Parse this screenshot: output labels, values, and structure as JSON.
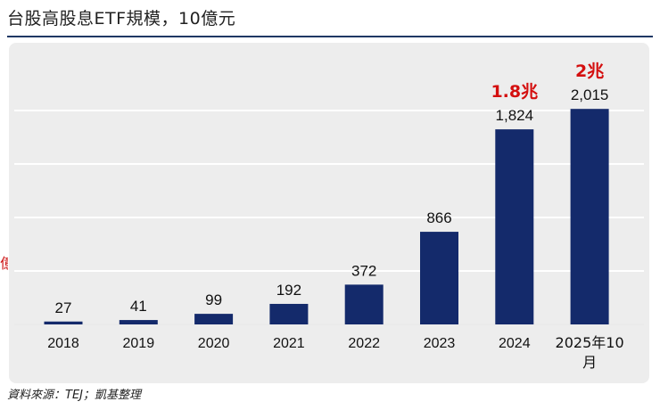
{
  "chart_data": {
    "type": "bar",
    "title": "台股高股息ETF規模，10億元",
    "categories": [
      "2018",
      "2019",
      "2020",
      "2021",
      "2022",
      "2023",
      "2024",
      "2025年10月"
    ],
    "values": [
      27,
      41,
      99,
      192,
      372,
      866,
      1824,
      2015
    ],
    "value_labels": [
      "27",
      "41",
      "99",
      "192",
      "372",
      "866",
      "1,824",
      "2,015"
    ],
    "highlight_labels": [
      {
        "category_index": 6,
        "text": "1.8兆"
      },
      {
        "category_index": 7,
        "text": "2兆"
      }
    ],
    "ylim": [
      0,
      2000
    ],
    "y_gridlines": [
      0,
      500,
      1000,
      1500,
      2000
    ],
    "grid": true,
    "xlabel": "",
    "ylabel": "",
    "colors": {
      "bar": "#142a6b",
      "highlight": "#d40f0f",
      "grid": "#ffffff",
      "panel": "#ededed"
    }
  },
  "source_note": "資料來源：TEJ；凱基整理",
  "side_glyph": "億"
}
